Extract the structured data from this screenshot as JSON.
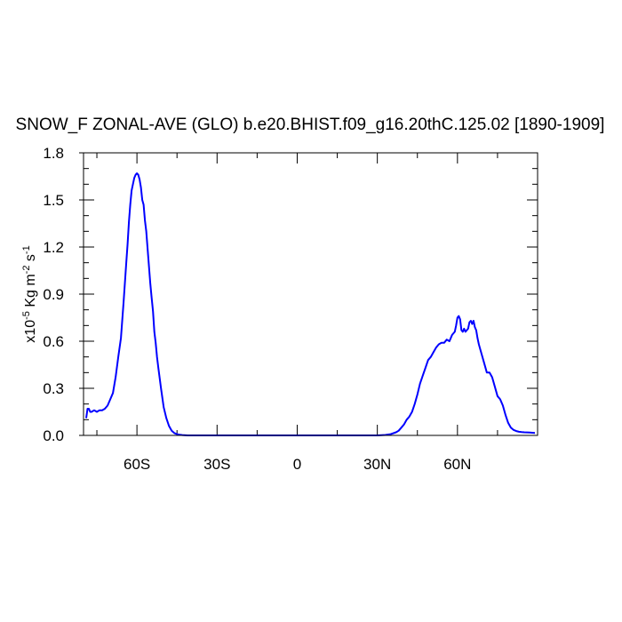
{
  "chart_data": {
    "type": "line",
    "title": "SNOW_F ZONAL-AVE (GLO) b.e20.BHIST.f09_g16.20thC.125.02 [1890-1909]",
    "ylabel_prefix": "x10",
    "ylabel_exponent": "-5",
    "ylabel_unit": "Kg m",
    "ylabel_unit_exponent": "-2",
    "ylabel_unit2": "s",
    "ylabel_unit2_exponent": "-1",
    "xlim": [
      -80,
      90
    ],
    "ylim": [
      0,
      1.8
    ],
    "x_ticks": [
      {
        "value": -60,
        "label": "60S"
      },
      {
        "value": -30,
        "label": "30S"
      },
      {
        "value": 0,
        "label": "0"
      },
      {
        "value": 30,
        "label": "30N"
      },
      {
        "value": 60,
        "label": "60N"
      }
    ],
    "y_ticks": [
      {
        "value": 0,
        "label": "0.0"
      },
      {
        "value": 0.3,
        "label": "0.3"
      },
      {
        "value": 0.6,
        "label": "0.6"
      },
      {
        "value": 0.9,
        "label": "0.9"
      },
      {
        "value": 1.2,
        "label": "1.2"
      },
      {
        "value": 1.5,
        "label": "1.5"
      },
      {
        "value": 1.8,
        "label": "1.8"
      }
    ],
    "line_color": "#0000ff",
    "series": [
      {
        "x": [
          -79,
          -78.5,
          -78,
          -77.5,
          -77,
          -76,
          -75,
          -74,
          -73,
          -72,
          -71,
          -70,
          -69,
          -68,
          -67,
          -66,
          -65,
          -64,
          -63.5,
          -63,
          -62.5,
          -62,
          -61.5,
          -61,
          -60.5,
          -60,
          -59.5,
          -59,
          -58.5,
          -58,
          -57.5,
          -57,
          -56.5,
          -56,
          -55.5,
          -55,
          -54.5,
          -54,
          -53.5,
          -53,
          -52.5,
          -52,
          -51,
          -50,
          -49,
          -48,
          -47,
          -46,
          -45,
          -44,
          -43,
          -41,
          -35,
          -20,
          0,
          20,
          30,
          33,
          35,
          37,
          38,
          39,
          40,
          41,
          42,
          43,
          44,
          45,
          46,
          47,
          48,
          49,
          50,
          51,
          52,
          53,
          54,
          55,
          56,
          57,
          58,
          59,
          59.5,
          60,
          60.5,
          61,
          61.5,
          62,
          62.5,
          63,
          63.5,
          64,
          64.5,
          65,
          65.5,
          66,
          66.5,
          67,
          67.5,
          68,
          69,
          70,
          71,
          72,
          73,
          74,
          75,
          76,
          77,
          78,
          79,
          80,
          81,
          82,
          83,
          84,
          85,
          86,
          87,
          88,
          89
        ],
        "y": [
          0.11,
          0.17,
          0.17,
          0.15,
          0.15,
          0.16,
          0.15,
          0.16,
          0.16,
          0.17,
          0.19,
          0.23,
          0.27,
          0.37,
          0.5,
          0.62,
          0.85,
          1.1,
          1.22,
          1.36,
          1.47,
          1.56,
          1.6,
          1.64,
          1.66,
          1.67,
          1.66,
          1.63,
          1.58,
          1.5,
          1.47,
          1.37,
          1.3,
          1.19,
          1.08,
          0.97,
          0.88,
          0.79,
          0.66,
          0.59,
          0.5,
          0.43,
          0.3,
          0.18,
          0.11,
          0.06,
          0.03,
          0.015,
          0.008,
          0.004,
          0.002,
          0,
          0,
          0,
          0,
          0,
          0,
          0.003,
          0.008,
          0.02,
          0.03,
          0.05,
          0.07,
          0.1,
          0.12,
          0.15,
          0.2,
          0.26,
          0.33,
          0.38,
          0.43,
          0.48,
          0.5,
          0.53,
          0.56,
          0.58,
          0.59,
          0.59,
          0.61,
          0.6,
          0.64,
          0.66,
          0.7,
          0.75,
          0.76,
          0.74,
          0.67,
          0.66,
          0.68,
          0.66,
          0.67,
          0.68,
          0.72,
          0.73,
          0.71,
          0.73,
          0.69,
          0.67,
          0.62,
          0.58,
          0.52,
          0.46,
          0.4,
          0.4,
          0.37,
          0.31,
          0.25,
          0.23,
          0.19,
          0.13,
          0.08,
          0.05,
          0.035,
          0.028,
          0.023,
          0.021,
          0.02,
          0.019,
          0.018,
          0.017,
          0.016
        ]
      }
    ]
  }
}
